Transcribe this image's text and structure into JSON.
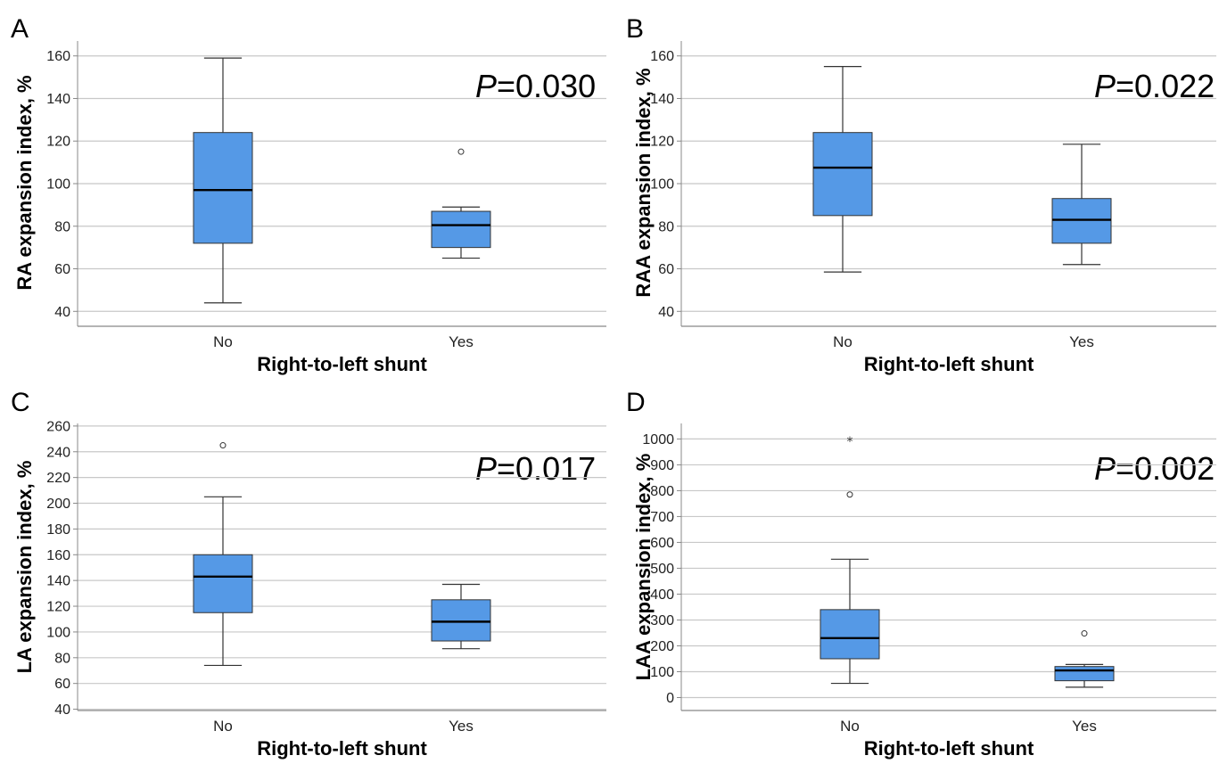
{
  "chart_data": [
    {
      "type": "boxplot",
      "panel_label": "A",
      "ylabel": "RA expansion index, %",
      "xlabel": "Right-to-left shunt",
      "p_prefix": "P",
      "p_value": "=0.030",
      "categories": [
        "No",
        "Yes"
      ],
      "ylim": [
        33,
        167
      ],
      "yticks": [
        40,
        60,
        80,
        100,
        120,
        140,
        160
      ],
      "grid": true,
      "boxes": [
        {
          "category": "No",
          "whisker_low": 44,
          "q1": 72,
          "median": 97,
          "q3": 124,
          "whisker_high": 159,
          "outliers": [],
          "extremes": []
        },
        {
          "category": "Yes",
          "whisker_low": 65,
          "q1": 70,
          "median": 80.5,
          "q3": 87,
          "whisker_high": 89,
          "outliers": [
            115
          ],
          "extremes": []
        }
      ]
    },
    {
      "type": "boxplot",
      "panel_label": "B",
      "ylabel": "RAA expansion index, %",
      "xlabel": "Right-to-left shunt",
      "p_prefix": "P",
      "p_value": "=0.022",
      "categories": [
        "No",
        "Yes"
      ],
      "ylim": [
        33,
        167
      ],
      "yticks": [
        40,
        60,
        80,
        100,
        120,
        140,
        160
      ],
      "grid": true,
      "boxes": [
        {
          "category": "No",
          "whisker_low": 58.5,
          "q1": 85,
          "median": 107.5,
          "q3": 124,
          "whisker_high": 155,
          "outliers": [],
          "extremes": []
        },
        {
          "category": "Yes",
          "whisker_low": 62,
          "q1": 72,
          "median": 83,
          "q3": 93,
          "whisker_high": 118.5,
          "outliers": [],
          "extremes": []
        }
      ]
    },
    {
      "type": "boxplot",
      "panel_label": "C",
      "ylabel": "LA expansion index, %",
      "xlabel": "Right-to-left shunt",
      "p_prefix": "P",
      "p_value": "=0.017",
      "categories": [
        "No",
        "Yes"
      ],
      "ylim": [
        39,
        262
      ],
      "yticks": [
        40,
        60,
        80,
        100,
        120,
        140,
        160,
        180,
        200,
        220,
        240,
        260
      ],
      "grid": true,
      "boxes": [
        {
          "category": "No",
          "whisker_low": 74,
          "q1": 115,
          "median": 143,
          "q3": 160,
          "whisker_high": 205,
          "outliers": [
            245
          ],
          "extremes": []
        },
        {
          "category": "Yes",
          "whisker_low": 87,
          "q1": 93,
          "median": 108,
          "q3": 125,
          "whisker_high": 137,
          "outliers": [],
          "extremes": []
        }
      ]
    },
    {
      "type": "boxplot",
      "panel_label": "D",
      "ylabel": "LAA expansion index, %",
      "xlabel": "Right-to-left shunt",
      "p_prefix": "P",
      "p_value": "=0.002",
      "categories": [
        "No",
        "Yes"
      ],
      "ylim": [
        -50,
        1060
      ],
      "yticks": [
        0,
        100,
        200,
        300,
        400,
        500,
        600,
        700,
        800,
        900,
        1000
      ],
      "grid": true,
      "boxes": [
        {
          "category": "No",
          "whisker_low": 55,
          "q1": 150,
          "median": 230,
          "q3": 340,
          "whisker_high": 535,
          "outliers": [
            785
          ],
          "extremes": [
            995
          ]
        },
        {
          "category": "Yes",
          "whisker_low": 40,
          "q1": 65,
          "median": 105,
          "q3": 120,
          "whisker_high": 128,
          "outliers": [
            248
          ],
          "extremes": []
        }
      ]
    }
  ],
  "colors": {
    "box_fill": "#5599e6",
    "box_stroke": "#333333",
    "grid": "#c8c8c8",
    "axis": "#888888"
  }
}
